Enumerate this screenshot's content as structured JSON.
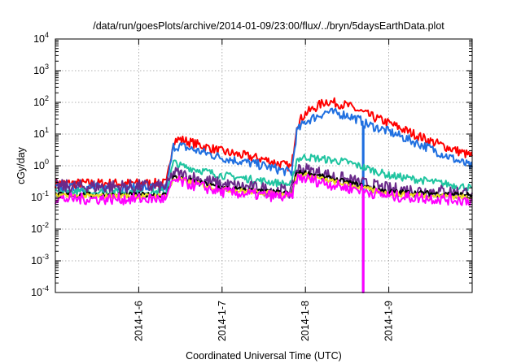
{
  "chart_data": {
    "type": "line",
    "title": "/data/run/goesPlots/archive/2014-01-09/23:00/flux/../bryn/5daysEarthData.plot",
    "xlabel": "Coordinated Universal Time (UTC)",
    "ylabel": "cGy/day",
    "yscale": "log",
    "ylim": [
      0.0001,
      10000
    ],
    "xlim": [
      "2014-01-05 00:00",
      "2014-01-10 00:00"
    ],
    "grid": true,
    "x_ticks": [
      {
        "value": "2014-01-06",
        "label": "2014-1-6"
      },
      {
        "value": "2014-01-07",
        "label": "2014-1-7"
      },
      {
        "value": "2014-01-08",
        "label": "2014-1-8"
      },
      {
        "value": "2014-01-09",
        "label": "2014-1-9"
      }
    ],
    "y_ticks": [
      {
        "value": 0.0001,
        "base": "10",
        "exp": "-4"
      },
      {
        "value": 0.001,
        "base": "10",
        "exp": "-3"
      },
      {
        "value": 0.01,
        "base": "10",
        "exp": "-2"
      },
      {
        "value": 0.1,
        "base": "10",
        "exp": "-1"
      },
      {
        "value": 1,
        "base": "10",
        "exp": "0"
      },
      {
        "value": 10,
        "base": "10",
        "exp": "1"
      },
      {
        "value": 100,
        "base": "10",
        "exp": "2"
      },
      {
        "value": 1000,
        "base": "10",
        "exp": "3"
      },
      {
        "value": 10000,
        "base": "10",
        "exp": "4"
      }
    ],
    "series": [
      {
        "color": "#ff0000",
        "noise": 0.15,
        "points": [
          [
            "2014-01-05 00:00",
            0.28
          ],
          [
            "2014-01-06 08:00",
            0.28
          ],
          [
            "2014-01-06 10:00",
            6.5
          ],
          [
            "2014-01-06 12:00",
            6.8
          ],
          [
            "2014-01-07 00:00",
            2.8
          ],
          [
            "2014-01-07 12:00",
            1.6
          ],
          [
            "2014-01-07 20:00",
            0.9
          ],
          [
            "2014-01-07 21:30",
            20
          ],
          [
            "2014-01-08 00:00",
            45
          ],
          [
            "2014-01-08 06:00",
            110
          ],
          [
            "2014-01-08 12:00",
            80
          ],
          [
            "2014-01-08 18:00",
            40
          ],
          [
            "2014-01-09 00:00",
            22
          ],
          [
            "2014-01-09 12:00",
            6
          ],
          [
            "2014-01-10 00:00",
            2
          ]
        ]
      },
      {
        "color": "#1f6fe0",
        "noise": 0.15,
        "points": [
          [
            "2014-01-05 00:00",
            0.2
          ],
          [
            "2014-01-06 08:00",
            0.2
          ],
          [
            "2014-01-06 10:00",
            4.0
          ],
          [
            "2014-01-06 12:00",
            4.2
          ],
          [
            "2014-01-07 00:00",
            1.8
          ],
          [
            "2014-01-07 12:00",
            1.0
          ],
          [
            "2014-01-07 20:00",
            0.6
          ],
          [
            "2014-01-07 21:30",
            12
          ],
          [
            "2014-01-08 00:00",
            25
          ],
          [
            "2014-01-08 06:00",
            50
          ],
          [
            "2014-01-08 12:00",
            40
          ],
          [
            "2014-01-08 16:30",
            25
          ],
          [
            "2014-01-08 16:31",
            0.0001
          ],
          [
            "2014-01-08 16:45",
            0.0001
          ],
          [
            "2014-01-08 16:46",
            22
          ],
          [
            "2014-01-09 00:00",
            12
          ],
          [
            "2014-01-09 12:00",
            3.5
          ],
          [
            "2014-01-10 00:00",
            0.9
          ]
        ]
      },
      {
        "color": "#1fc4a0",
        "noise": 0.12,
        "points": [
          [
            "2014-01-05 00:00",
            0.15
          ],
          [
            "2014-01-06 08:00",
            0.15
          ],
          [
            "2014-01-06 10:00",
            1.3
          ],
          [
            "2014-01-06 12:00",
            1.0
          ],
          [
            "2014-01-07 00:00",
            0.5
          ],
          [
            "2014-01-07 20:00",
            0.25
          ],
          [
            "2014-01-07 21:30",
            1.6
          ],
          [
            "2014-01-08 00:00",
            1.9
          ],
          [
            "2014-01-08 12:00",
            1.3
          ],
          [
            "2014-01-09 00:00",
            0.5
          ],
          [
            "2014-01-10 00:00",
            0.2
          ]
        ]
      },
      {
        "color": "#6a2a8a",
        "noise": 0.22,
        "points": [
          [
            "2014-01-05 00:00",
            0.22
          ],
          [
            "2014-01-06 08:00",
            0.22
          ],
          [
            "2014-01-06 10:00",
            0.6
          ],
          [
            "2014-01-07 00:00",
            0.25
          ],
          [
            "2014-01-07 20:00",
            0.15
          ],
          [
            "2014-01-07 21:30",
            0.8
          ],
          [
            "2014-01-08 00:00",
            0.75
          ],
          [
            "2014-01-08 12:00",
            0.35
          ],
          [
            "2014-01-09 00:00",
            0.18
          ],
          [
            "2014-01-10 00:00",
            0.14
          ]
        ]
      },
      {
        "color": "#000000",
        "noise": 0.08,
        "points": [
          [
            "2014-01-05 00:00",
            0.12
          ],
          [
            "2014-01-06 08:00",
            0.12
          ],
          [
            "2014-01-06 10:00",
            0.45
          ],
          [
            "2014-01-07 00:00",
            0.2
          ],
          [
            "2014-01-07 20:00",
            0.13
          ],
          [
            "2014-01-07 21:30",
            0.6
          ],
          [
            "2014-01-08 00:00",
            0.6
          ],
          [
            "2014-01-08 12:00",
            0.3
          ],
          [
            "2014-01-09 00:00",
            0.15
          ],
          [
            "2014-01-10 00:00",
            0.12
          ]
        ]
      },
      {
        "color": "#f0e020",
        "noise": 0.08,
        "points": [
          [
            "2014-01-05 00:00",
            0.11
          ],
          [
            "2014-01-06 08:00",
            0.11
          ],
          [
            "2014-01-06 10:00",
            0.4
          ],
          [
            "2014-01-07 00:00",
            0.18
          ],
          [
            "2014-01-07 20:00",
            0.12
          ],
          [
            "2014-01-07 21:30",
            0.5
          ],
          [
            "2014-01-08 00:00",
            0.5
          ],
          [
            "2014-01-08 12:00",
            0.25
          ],
          [
            "2014-01-09 00:00",
            0.13
          ],
          [
            "2014-01-10 00:00",
            0.1
          ]
        ]
      },
      {
        "color": "#ff00ff",
        "noise": 0.18,
        "points": [
          [
            "2014-01-05 00:00",
            0.09
          ],
          [
            "2014-01-06 08:00",
            0.09
          ],
          [
            "2014-01-06 10:00",
            0.35
          ],
          [
            "2014-01-07 00:00",
            0.15
          ],
          [
            "2014-01-07 20:00",
            0.1
          ],
          [
            "2014-01-07 21:30",
            0.4
          ],
          [
            "2014-01-08 00:00",
            0.4
          ],
          [
            "2014-01-08 12:00",
            0.2
          ],
          [
            "2014-01-08 16:30",
            0.18
          ],
          [
            "2014-01-08 16:31",
            0.0001
          ],
          [
            "2014-01-08 16:45",
            0.0001
          ],
          [
            "2014-01-08 16:46",
            0.16
          ],
          [
            "2014-01-09 00:00",
            0.11
          ],
          [
            "2014-01-10 00:00",
            0.08
          ]
        ]
      }
    ]
  }
}
